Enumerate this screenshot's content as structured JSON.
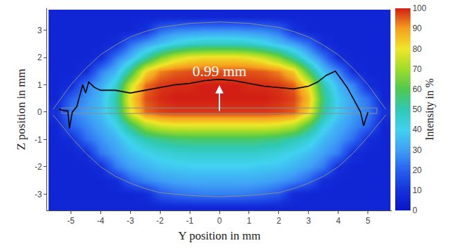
{
  "chart_data": {
    "type": "heatmap",
    "x_label": "Y position in mm",
    "y_label": "Z position in mm",
    "xlim": [
      -5.8,
      5.8
    ],
    "xticks": [
      -5,
      -4,
      -3,
      -2,
      -1,
      0,
      1,
      2,
      3,
      4,
      5
    ],
    "ylim": [
      -3.6,
      3.8
    ],
    "yticks": [
      -3,
      -2,
      -1,
      0,
      1,
      2,
      3
    ],
    "x": [
      -5.5,
      -5,
      -4.5,
      -4,
      -3.5,
      -3,
      -2.5,
      -2,
      -1.5,
      -1,
      -0.5,
      0,
      0.5,
      1,
      1.5,
      2,
      2.5,
      3,
      3.5,
      4,
      4.5,
      5,
      5.5
    ],
    "y": [
      -3.5,
      -3,
      -2.5,
      -2,
      -1.5,
      -1,
      -0.5,
      0,
      0.5,
      1,
      1.5,
      2,
      2.5,
      3,
      3.5
    ],
    "z": [
      [
        6,
        6,
        6,
        6,
        6,
        6,
        6,
        6,
        6,
        6,
        6,
        6,
        6,
        6,
        6,
        6,
        6,
        6,
        6,
        6,
        6,
        6,
        6
      ],
      [
        6,
        6,
        6,
        6,
        6,
        6,
        8,
        18,
        22,
        24,
        25,
        25,
        25,
        24,
        22,
        18,
        8,
        6,
        6,
        6,
        6,
        6,
        6
      ],
      [
        6,
        6,
        6,
        6,
        8,
        20,
        26,
        29,
        31,
        32,
        32,
        32,
        32,
        32,
        31,
        29,
        26,
        20,
        8,
        6,
        6,
        6,
        6
      ],
      [
        6,
        6,
        6,
        8,
        24,
        30,
        34,
        37,
        38,
        39,
        39,
        39,
        39,
        39,
        38,
        37,
        34,
        30,
        24,
        8,
        6,
        6,
        6
      ],
      [
        6,
        6,
        8,
        24,
        30,
        36,
        40,
        43,
        45,
        46,
        46,
        46,
        46,
        46,
        45,
        43,
        40,
        36,
        30,
        24,
        8,
        6,
        6
      ],
      [
        6,
        8,
        22,
        28,
        34,
        42,
        50,
        54,
        56,
        57,
        57,
        57,
        57,
        57,
        56,
        54,
        50,
        44,
        35,
        29,
        22,
        8,
        6
      ],
      [
        6,
        20,
        26,
        32,
        40,
        55,
        70,
        76,
        78,
        78,
        78,
        78,
        78,
        78,
        78,
        76,
        72,
        58,
        42,
        33,
        27,
        20,
        6
      ],
      [
        10,
        25,
        30,
        36,
        48,
        78,
        94,
        97,
        98,
        98,
        98,
        98,
        98,
        98,
        98,
        97,
        95,
        82,
        52,
        38,
        30,
        25,
        10
      ],
      [
        6,
        20,
        28,
        35,
        50,
        82,
        96,
        99,
        100,
        100,
        100,
        100,
        100,
        100,
        100,
        99,
        97,
        86,
        55,
        38,
        30,
        22,
        6
      ],
      [
        6,
        8,
        24,
        32,
        45,
        75,
        94,
        98,
        99,
        99,
        100,
        100,
        100,
        99,
        99,
        98,
        95,
        80,
        50,
        34,
        26,
        8,
        6
      ],
      [
        6,
        6,
        8,
        25,
        34,
        55,
        82,
        92,
        95,
        96,
        96,
        96,
        96,
        96,
        95,
        92,
        84,
        58,
        36,
        26,
        8,
        6,
        6
      ],
      [
        6,
        6,
        6,
        8,
        24,
        34,
        50,
        65,
        75,
        80,
        82,
        82,
        82,
        80,
        75,
        66,
        52,
        36,
        24,
        8,
        6,
        6,
        6
      ],
      [
        6,
        6,
        6,
        6,
        8,
        22,
        30,
        36,
        42,
        46,
        48,
        48,
        48,
        46,
        42,
        36,
        30,
        22,
        8,
        6,
        6,
        6,
        6
      ],
      [
        6,
        6,
        6,
        6,
        6,
        6,
        10,
        22,
        26,
        27,
        28,
        28,
        28,
        27,
        26,
        22,
        10,
        6,
        6,
        6,
        6,
        6,
        6
      ],
      [
        6,
        6,
        6,
        6,
        6,
        6,
        6,
        6,
        6,
        6,
        6,
        6,
        6,
        6,
        6,
        6,
        6,
        6,
        6,
        6,
        6,
        6,
        6
      ]
    ],
    "colorbar": {
      "title": "Intensity in %",
      "range": [
        0,
        100
      ],
      "ticks": [
        0,
        10,
        20,
        30,
        40,
        50,
        60,
        70,
        80,
        90,
        100
      ]
    },
    "series": [
      {
        "type": "line",
        "color": "#8c8c8c",
        "x": [
          -5.6,
          -5,
          -4.5,
          -4,
          -3.5,
          -3,
          -2.5,
          -2,
          -1,
          0,
          1,
          2,
          2.5,
          3,
          3.5,
          4,
          4.5,
          5,
          5.6
        ],
        "values": [
          0.1,
          1.0,
          1.6,
          2.1,
          2.45,
          2.75,
          2.95,
          3.1,
          3.25,
          3.3,
          3.25,
          3.1,
          2.95,
          2.75,
          2.45,
          2.1,
          1.6,
          1.0,
          0.1
        ]
      },
      {
        "type": "line",
        "color": "#8c8c8c",
        "x": [
          -5.6,
          -5,
          -4.5,
          -4,
          -3.5,
          -3,
          -2.5,
          -2,
          -1,
          0,
          1,
          2,
          2.5,
          3,
          3.5,
          4,
          4.5,
          5,
          5.6
        ],
        "values": [
          -0.1,
          -0.9,
          -1.5,
          -2.0,
          -2.35,
          -2.6,
          -2.8,
          -2.95,
          -3.05,
          -3.1,
          -3.05,
          -2.95,
          -2.8,
          -2.6,
          -2.35,
          -2.0,
          -1.5,
          -0.9,
          -0.1
        ]
      },
      {
        "type": "line",
        "color": "#8c8c8c",
        "x": [
          -5.3,
          5.3,
          5.3,
          -5.3,
          -5.3
        ],
        "values": [
          -0.05,
          -0.05,
          0.15,
          0.15,
          -0.05
        ]
      },
      {
        "type": "line",
        "color": "#000000",
        "x": [
          -5.4,
          -5.2,
          -5.1,
          -5.05,
          -4.95,
          -4.8,
          -4.7,
          -4.6,
          -4.5,
          -4.4,
          -4.2,
          -4,
          -3.5,
          -3,
          -2.5,
          -2,
          -1.5,
          -1,
          -0.5,
          0,
          0.5,
          1,
          1.5,
          2,
          2.5,
          3,
          3.3,
          3.6,
          3.9,
          4.1,
          4.3,
          4.5,
          4.65,
          4.75,
          4.85,
          5.0
        ],
        "values": [
          0.1,
          0.05,
          0.05,
          -0.6,
          0.0,
          0.2,
          0.6,
          1.0,
          0.7,
          1.1,
          0.9,
          0.8,
          0.8,
          0.7,
          0.8,
          0.9,
          1.0,
          1.05,
          1.15,
          1.2,
          1.15,
          1.05,
          0.95,
          0.9,
          0.85,
          0.95,
          1.1,
          1.35,
          1.5,
          1.2,
          0.9,
          0.5,
          0.2,
          0.0,
          -0.5,
          0.0
        ]
      }
    ],
    "annotations": [
      {
        "text": "0.99 mm",
        "x": 0,
        "y": 0.99
      }
    ]
  }
}
